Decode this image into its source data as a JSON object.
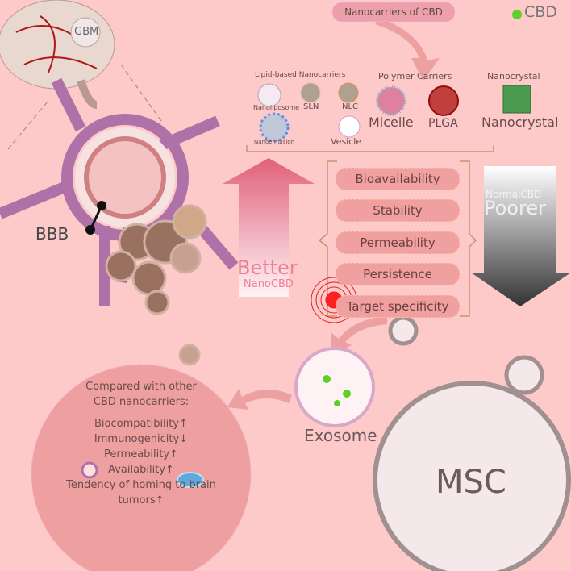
{
  "title_pill": "Nanocarriers of CBD",
  "legend": {
    "label": "CBD",
    "color": "#5fd02a"
  },
  "brain": {
    "label": "GBM"
  },
  "bbb_label": "BBB",
  "carriers": {
    "lipid": {
      "heading": "Lipid-based Nanocarriers",
      "items": [
        "Nanoliposome",
        "SLN",
        "NLC",
        "Nanoemulsion",
        "Vesicle"
      ]
    },
    "polymer": {
      "heading": "Polymer Carriers",
      "items": [
        "Micelle",
        "PLGA"
      ]
    },
    "crystal": {
      "heading": "Nanocrystal",
      "items": [
        "Nanocrystal"
      ]
    }
  },
  "better_arrow": {
    "main": "Better",
    "sub": "NanoCBD",
    "color": "#e0607a"
  },
  "poorer_arrow": {
    "sub": "NormalCBD",
    "main": "Poorer"
  },
  "properties": [
    "Bioavailability",
    "Stability",
    "Permeability",
    "Persistence",
    "Target specificity"
  ],
  "exosome_label": "Exosome",
  "msc_label": "MSC",
  "comparison": {
    "heading": [
      "Compared with other",
      "CBD nanocarriers:"
    ],
    "items": [
      "Biocompatibility↑",
      "Immunogenicity↓",
      "Permeability↑",
      "Availability↑",
      "Tendency of homing to brain",
      "tumors↑"
    ]
  }
}
